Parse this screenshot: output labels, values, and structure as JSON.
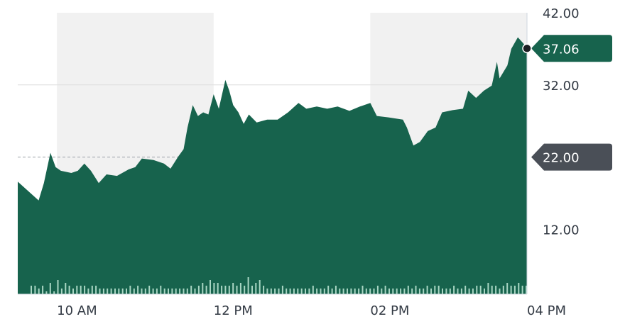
{
  "chart_data": {
    "type": "area",
    "title": "",
    "xlabel": "",
    "ylabel": "",
    "x_unit": "minutes after 09:30",
    "xlim": [
      0,
      390
    ],
    "ylim": [
      3,
      42
    ],
    "x_ticks": [
      {
        "value": 30,
        "label": "10 AM"
      },
      {
        "value": 150,
        "label": "12 PM"
      },
      {
        "value": 270,
        "label": "02 PM"
      },
      {
        "value": 390,
        "label": "04 PM"
      }
    ],
    "y_ticks": [
      {
        "value": 42,
        "label": "42.00"
      },
      {
        "value": 32,
        "label": "32.00"
      },
      {
        "value": 12,
        "label": "12.00"
      }
    ],
    "reference_line": {
      "value": 22,
      "label": "22.00",
      "color": "#4a4f57"
    },
    "last_price": {
      "value": 37.06,
      "label": "37.06",
      "color": "#17634d"
    },
    "shaded_bands": [
      [
        30,
        150
      ],
      [
        270,
        390
      ]
    ],
    "grid": true,
    "series": [
      {
        "name": "Price",
        "color": "#17634d",
        "x": [
          0,
          16,
          20,
          25,
          29,
          33,
          41,
          46,
          51,
          56,
          62,
          68,
          76,
          85,
          90,
          95,
          104,
          112,
          117,
          123,
          127,
          130,
          134,
          138,
          142,
          146,
          150,
          154,
          159,
          162,
          165,
          169,
          173,
          177,
          183,
          191,
          199,
          207,
          215,
          221,
          229,
          237,
          245,
          254,
          262,
          270,
          275,
          284,
          295,
          298,
          303,
          308,
          314,
          320,
          325,
          333,
          341,
          345,
          351,
          357,
          363,
          367,
          369,
          375,
          378,
          383,
          387,
          390
        ],
        "y": [
          18.6,
          16.0,
          18.4,
          22.6,
          20.6,
          20.1,
          19.8,
          20.1,
          21.1,
          20.1,
          18.4,
          19.6,
          19.4,
          20.3,
          20.6,
          21.8,
          21.6,
          21.1,
          20.4,
          22.1,
          23.1,
          26.1,
          29.2,
          27.7,
          28.2,
          27.9,
          30.7,
          28.7,
          32.7,
          31.2,
          29.2,
          28.2,
          26.6,
          27.9,
          26.8,
          27.2,
          27.2,
          28.2,
          29.5,
          28.7,
          29.0,
          28.7,
          29.0,
          28.4,
          29.0,
          29.5,
          27.7,
          27.5,
          27.2,
          26.1,
          23.6,
          24.1,
          25.6,
          26.1,
          28.2,
          28.5,
          28.7,
          31.2,
          30.2,
          31.2,
          31.9,
          35.2,
          32.9,
          34.7,
          37.0,
          38.6,
          37.8,
          37.06
        ]
      },
      {
        "name": "Volume",
        "color": "#a9d6c3",
        "values": [
          3,
          3,
          2,
          3,
          1,
          4,
          1,
          5,
          2,
          4,
          3,
          2,
          3,
          3,
          3,
          2,
          3,
          3,
          2,
          2,
          2,
          2,
          2,
          2,
          2,
          2,
          3,
          2,
          3,
          2,
          2,
          3,
          2,
          2,
          3,
          2,
          2,
          2,
          2,
          2,
          2,
          2,
          3,
          2,
          3,
          4,
          3,
          5,
          4,
          4,
          3,
          3,
          3,
          4,
          3,
          4,
          3,
          6,
          3,
          4,
          5,
          3,
          2,
          2,
          2,
          2,
          3,
          2,
          2,
          2,
          2,
          2,
          2,
          2,
          3,
          2,
          2,
          2,
          3,
          2,
          3,
          2,
          2,
          2,
          2,
          2,
          2,
          3,
          2,
          2,
          2,
          3,
          2,
          3,
          2,
          2,
          2,
          2,
          2,
          3,
          2,
          3,
          2,
          2,
          3,
          2,
          3,
          3,
          2,
          2,
          2,
          3,
          2,
          2,
          3,
          2,
          2,
          3,
          3,
          2,
          4,
          3,
          3,
          2,
          3,
          4,
          3,
          3,
          4,
          3,
          3
        ]
      }
    ]
  }
}
